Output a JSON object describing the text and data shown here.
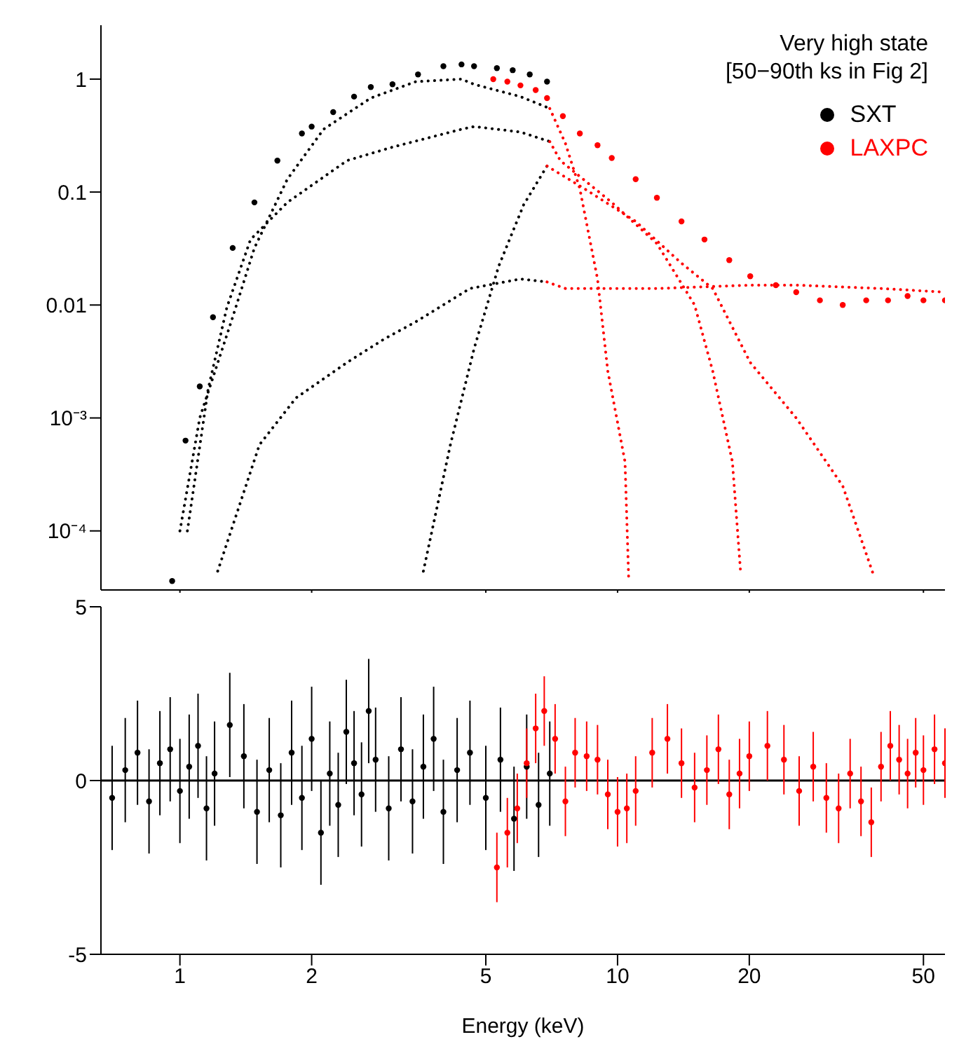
{
  "chart_data": [
    {
      "type": "scatter",
      "annotations": [
        "Very high state",
        "[50−90th ks in Fig 2]"
      ],
      "xlim": [
        0.66,
        56
      ],
      "xticks": [
        1,
        2,
        5,
        10,
        20,
        50
      ],
      "ylim": [
        3e-05,
        3
      ],
      "yticks": [
        1,
        0.1,
        0.01,
        {
          "value": 0.001,
          "label": "10⁻³"
        },
        {
          "value": 0.0001,
          "label": "10⁻⁴"
        }
      ],
      "log": "xy",
      "tick_labels": "y",
      "legend": "top right",
      "series": [
        {
          "name": "SXT",
          "color": "#000000",
          "marker": "circle",
          "x": [
            0.96,
            1.03,
            1.11,
            1.19,
            1.32,
            1.48,
            1.67,
            1.9,
            2.0,
            2.24,
            2.5,
            2.73,
            3.06,
            3.5,
            4.0,
            4.4,
            4.7,
            5.3,
            5.76,
            6.3,
            6.9
          ],
          "values": [
            3.6e-05,
            0.00063,
            0.0019,
            0.0078,
            0.032,
            0.081,
            0.19,
            0.33,
            0.38,
            0.51,
            0.7,
            0.85,
            0.9,
            1.1,
            1.3,
            1.35,
            1.3,
            1.25,
            1.2,
            1.1,
            0.95
          ]
        },
        {
          "name": "LAXPC",
          "color": "#ff0000",
          "marker": "circle",
          "x": [
            5.2,
            5.6,
            6.0,
            6.5,
            6.9,
            7.5,
            8.2,
            9.0,
            9.7,
            11,
            12.3,
            14,
            15.8,
            18,
            20.1,
            23,
            25.6,
            29,
            32.7,
            37,
            41.5,
            46,
            50,
            56
          ],
          "values": [
            1.0,
            0.95,
            0.88,
            0.8,
            0.68,
            0.47,
            0.33,
            0.26,
            0.2,
            0.13,
            0.089,
            0.055,
            0.038,
            0.025,
            0.018,
            0.015,
            0.013,
            0.011,
            0.01,
            0.011,
            0.011,
            0.012,
            0.011,
            0.011
          ]
        },
        {
          "type": "line",
          "color": "#000000",
          "line_style": "dotted",
          "marker": "none",
          "x": [
            1.0,
            1.11,
            1.32,
            1.48,
            1.76,
            2.13,
            2.73,
            3.46,
            4.4,
            4.7,
            6.0,
            7.0
          ],
          "values": [
            0.0001,
            0.001,
            0.0078,
            0.032,
            0.13,
            0.36,
            0.68,
            0.95,
            1.0,
            0.9,
            0.7,
            0.55
          ]
        },
        {
          "type": "line",
          "color": "#ff0000",
          "line_style": "dotted",
          "marker": "none",
          "x": [
            7.0,
            7.6,
            8.2,
            9.0,
            9.5,
            10.4,
            10.6
          ],
          "values": [
            0.55,
            0.27,
            0.107,
            0.017,
            0.0026,
            0.00041,
            3.9e-05
          ]
        },
        {
          "type": "line",
          "color": "#000000",
          "line_style": "dotted",
          "marker": "none",
          "x": [
            1.04,
            1.16,
            1.28,
            1.45,
            1.76,
            2.41,
            3.06,
            4.4,
            4.7,
            6.0,
            7.0
          ],
          "values": [
            0.0001,
            0.0018,
            0.0095,
            0.038,
            0.081,
            0.19,
            0.25,
            0.36,
            0.38,
            0.34,
            0.28
          ]
        },
        {
          "type": "line",
          "color": "#ff0000",
          "line_style": "dotted",
          "marker": "none",
          "x": [
            7.0,
            7.4,
            9.7,
            12.3,
            15.0,
            16.5,
            18.3,
            19.1
          ],
          "values": [
            0.28,
            0.19,
            0.081,
            0.035,
            0.01,
            0.0026,
            0.00041,
            4.4e-05
          ]
        },
        {
          "type": "line",
          "color": "#000000",
          "line_style": "dotted",
          "marker": "none",
          "x": [
            3.6,
            4.15,
            4.7,
            5.35,
            6.1,
            6.9
          ],
          "values": [
            4.4e-05,
            0.00058,
            0.0041,
            0.022,
            0.077,
            0.17
          ]
        },
        {
          "type": "line",
          "color": "#ff0000",
          "line_style": "dotted",
          "marker": "none",
          "x": [
            6.9,
            8.4,
            11,
            13.9,
            16.5,
            20.1,
            25.6,
            32.7,
            38.6
          ],
          "values": [
            0.17,
            0.107,
            0.055,
            0.024,
            0.014,
            0.0031,
            0.001,
            0.00025,
            3.9e-05
          ]
        },
        {
          "type": "line",
          "color": "#000000",
          "line_style": "dotted",
          "marker": "none",
          "x": [
            1.22,
            1.52,
            1.84,
            2.41,
            2.93,
            3.46,
            4.6,
            6.0,
            6.9
          ],
          "values": [
            4.4e-05,
            0.00058,
            0.0015,
            0.0031,
            0.005,
            0.0071,
            0.014,
            0.017,
            0.016
          ]
        },
        {
          "type": "line",
          "color": "#ff0000",
          "line_style": "dotted",
          "marker": "none",
          "x": [
            6.9,
            7.6,
            12.3,
            20.1,
            25.6,
            40,
            56
          ],
          "values": [
            0.016,
            0.014,
            0.014,
            0.015,
            0.015,
            0.014,
            0.013
          ]
        }
      ]
    },
    {
      "type": "scatter",
      "xlabel": "Energy (keV)",
      "xlim": [
        0.66,
        56
      ],
      "xticks": [
        1,
        2,
        5,
        10,
        20,
        50
      ],
      "ylim": [
        -5,
        5
      ],
      "yticks": [
        -5,
        0,
        5
      ],
      "log": "x",
      "ref_lines": [
        {
          "axis": "y",
          "value": 0,
          "color": "#000000"
        }
      ],
      "series": [
        {
          "color": "#000000",
          "marker": "circle",
          "x": [
            0.7,
            0.75,
            0.8,
            0.85,
            0.9,
            0.95,
            1.0,
            1.05,
            1.1,
            1.15,
            1.2,
            1.3,
            1.4,
            1.5,
            1.6,
            1.7,
            1.8,
            1.9,
            2.0,
            2.1,
            2.2,
            2.3,
            2.4,
            2.5,
            2.6,
            2.7,
            2.8,
            3.0,
            3.2,
            3.4,
            3.6,
            3.8,
            4.0,
            4.3,
            4.6,
            5.0,
            5.4,
            5.8,
            6.2,
            6.6,
            7.0
          ],
          "values": [
            -0.5,
            0.3,
            0.8,
            -0.6,
            0.5,
            0.9,
            -0.3,
            0.4,
            1.0,
            -0.8,
            0.2,
            1.6,
            0.7,
            -0.9,
            0.3,
            -1.0,
            0.8,
            -0.5,
            1.2,
            -1.5,
            0.2,
            -0.7,
            1.4,
            0.5,
            -0.4,
            2.0,
            0.6,
            -0.8,
            0.9,
            -0.6,
            0.4,
            1.2,
            -0.9,
            0.3,
            0.8,
            -0.5,
            0.6,
            -1.1,
            0.4,
            -0.7,
            0.2
          ],
          "errors": [
            1.5,
            1.5,
            1.5,
            1.5,
            1.5,
            1.5,
            1.5,
            1.5,
            1.5,
            1.5,
            1.5,
            1.5,
            1.5,
            1.5,
            1.5,
            1.5,
            1.5,
            1.5,
            1.5,
            1.5,
            1.5,
            1.5,
            1.5,
            1.5,
            1.5,
            1.5,
            1.5,
            1.5,
            1.5,
            1.5,
            1.5,
            1.5,
            1.5,
            1.5,
            1.5,
            1.5,
            1.5,
            1.5,
            1.5,
            1.5,
            1.5
          ]
        },
        {
          "color": "#ff0000",
          "marker": "circle",
          "x": [
            5.3,
            5.6,
            5.9,
            6.2,
            6.5,
            6.8,
            7.2,
            7.6,
            8.0,
            8.5,
            9.0,
            9.5,
            10,
            10.5,
            11,
            12,
            13,
            14,
            15,
            16,
            17,
            18,
            19,
            20,
            22,
            24,
            26,
            28,
            30,
            32,
            34,
            36,
            38,
            40,
            42,
            44,
            46,
            48,
            50,
            53,
            56
          ],
          "values": [
            -2.5,
            -1.5,
            -0.8,
            0.5,
            1.5,
            2.0,
            1.2,
            -0.6,
            0.8,
            0.7,
            0.6,
            -0.4,
            -0.9,
            -0.8,
            -0.3,
            0.8,
            1.2,
            0.5,
            -0.2,
            0.3,
            0.9,
            -0.4,
            0.2,
            0.7,
            1.0,
            0.6,
            -0.3,
            0.4,
            -0.5,
            -0.8,
            0.2,
            -0.6,
            -1.2,
            0.4,
            1.0,
            0.6,
            0.2,
            0.8,
            0.3,
            0.9,
            0.5
          ],
          "errors": [
            1,
            1,
            1,
            1,
            1,
            1,
            1,
            1,
            1,
            1,
            1,
            1,
            1,
            1,
            1,
            1,
            1,
            1,
            1,
            1,
            1,
            1,
            1,
            1,
            1,
            1,
            1,
            1,
            1,
            1,
            1,
            1,
            1,
            1,
            1,
            1,
            1,
            1,
            1,
            1,
            1
          ]
        }
      ]
    }
  ]
}
